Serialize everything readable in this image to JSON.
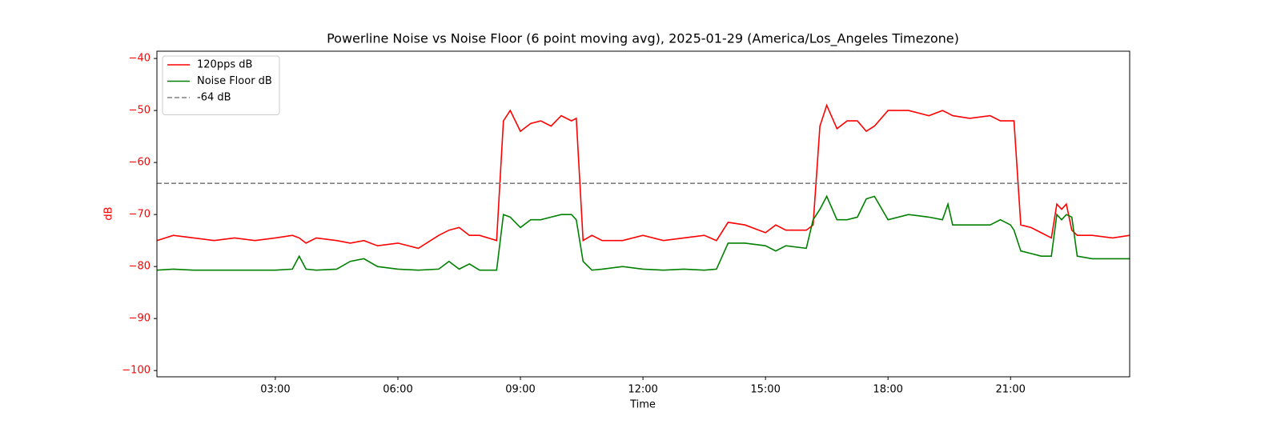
{
  "chart_data": {
    "type": "line",
    "title": "Powerline Noise vs Noise Floor (6 point moving avg), 2025-01-29 (America/Los_Angeles Timezone)",
    "xlabel": "Time",
    "ylabel": "dB",
    "ylabel_color": "#ff0000",
    "ytick_color": "#ff0000",
    "x": [
      "00:06",
      "00:30",
      "01:00",
      "01:30",
      "02:00",
      "02:30",
      "03:00",
      "03:25",
      "03:35",
      "03:45",
      "04:00",
      "04:30",
      "04:50",
      "05:10",
      "05:30",
      "06:00",
      "06:30",
      "07:00",
      "07:15",
      "07:30",
      "07:45",
      "08:00",
      "08:25",
      "08:35",
      "08:45",
      "09:00",
      "09:15",
      "09:30",
      "09:45",
      "10:00",
      "10:15",
      "10:22",
      "10:32",
      "10:45",
      "11:00",
      "11:30",
      "12:00",
      "12:30",
      "13:00",
      "13:30",
      "13:48",
      "14:05",
      "14:30",
      "15:00",
      "15:15",
      "15:30",
      "16:00",
      "16:10",
      "16:20",
      "16:30",
      "16:45",
      "17:00",
      "17:15",
      "17:28",
      "17:40",
      "18:00",
      "18:30",
      "19:00",
      "19:20",
      "19:28",
      "19:35",
      "20:00",
      "20:30",
      "20:45",
      "21:00",
      "21:05",
      "21:15",
      "21:30",
      "21:45",
      "22:00",
      "22:08",
      "22:15",
      "22:22",
      "22:30",
      "22:38",
      "23:00",
      "23:30",
      "23:55"
    ],
    "series": [
      {
        "name": "120pps dB",
        "color": "#ff0000",
        "values": [
          -75,
          -74,
          -74.5,
          -75,
          -74.5,
          -75,
          -74.5,
          -74,
          -74.5,
          -75.5,
          -74.5,
          -75,
          -75.5,
          -75,
          -76,
          -75.5,
          -76.5,
          -74,
          -73,
          -72.5,
          -74,
          -74,
          -75,
          -52,
          -50,
          -54,
          -52.5,
          -52,
          -53,
          -51,
          -52,
          -51.5,
          -75,
          -74,
          -75,
          -75,
          -74,
          -75,
          -74.5,
          -74,
          -75,
          -71.5,
          -72,
          -73.5,
          -72,
          -73,
          -73,
          -72,
          -53,
          -49,
          -53.5,
          -52,
          -52,
          -54,
          -53,
          -50,
          -50,
          -51,
          -50,
          -50.5,
          -51,
          -51.5,
          -51,
          -52,
          -52,
          -52,
          -72,
          -72.5,
          -73.5,
          -74.5,
          -68,
          -69,
          -68,
          -73,
          -74,
          -74,
          -74.5,
          -74
        ]
      },
      {
        "name": "Noise Floor dB",
        "color": "#008000",
        "values": [
          -80.7,
          -80.5,
          -80.7,
          -80.7,
          -80.7,
          -80.7,
          -80.7,
          -80.5,
          -78,
          -80.5,
          -80.7,
          -80.5,
          -79,
          -78.5,
          -80,
          -80.5,
          -80.7,
          -80.5,
          -79,
          -80.5,
          -79.5,
          -80.7,
          -80.7,
          -70,
          -70.5,
          -72.5,
          -71,
          -71,
          -70.5,
          -70,
          -70,
          -71,
          -79,
          -80.7,
          -80.5,
          -80,
          -80.5,
          -80.7,
          -80.5,
          -80.7,
          -80.5,
          -75.5,
          -75.5,
          -76,
          -77,
          -76,
          -76.5,
          -71,
          -69,
          -66.5,
          -71,
          -71,
          -70.5,
          -67,
          -66.5,
          -71,
          -70,
          -70.5,
          -71,
          -68,
          -72,
          -72,
          -72,
          -71,
          -72,
          -73,
          -77,
          -77.5,
          -78,
          -78,
          -70,
          -71,
          -70,
          -70.5,
          -78,
          -78.5,
          -78.5,
          -78.5
        ]
      }
    ],
    "hlines": [
      {
        "name": "-64 dB",
        "value": -64,
        "color": "#808080",
        "style": "dashed"
      }
    ],
    "xlim": [
      "00:06",
      "23:55"
    ],
    "xticks": [
      "03:00",
      "06:00",
      "09:00",
      "12:00",
      "15:00",
      "18:00",
      "21:00"
    ],
    "ylim": [
      -101.2,
      -38.6
    ],
    "yticks": [
      {
        "value": -40,
        "label": "−40"
      },
      {
        "value": -50,
        "label": "−50"
      },
      {
        "value": -60,
        "label": "−60"
      },
      {
        "value": -70,
        "label": "−70"
      },
      {
        "value": -80,
        "label": "−80"
      },
      {
        "value": -90,
        "label": "−90"
      },
      {
        "value": -100,
        "label": "−100"
      }
    ],
    "legend": "upper left"
  }
}
